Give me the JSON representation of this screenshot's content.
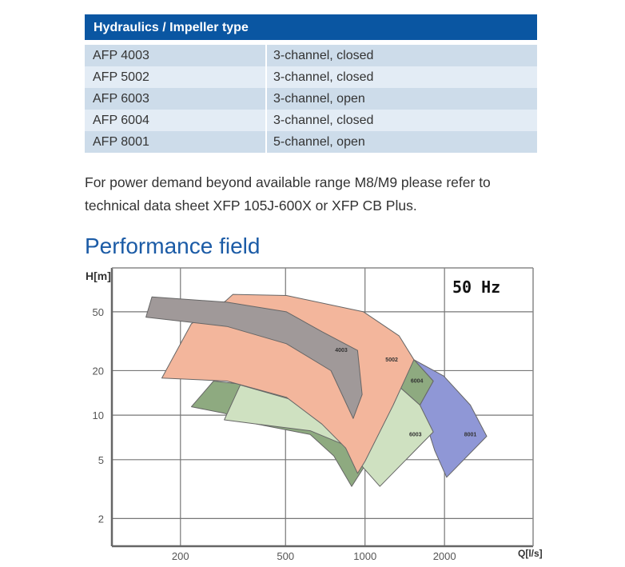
{
  "table": {
    "header": "Hydraulics / Impeller type",
    "rows": [
      {
        "model": "AFP 4003",
        "type": "3-channel, closed"
      },
      {
        "model": "AFP 5002",
        "type": "3-channel, closed"
      },
      {
        "model": "AFP 6003",
        "type": "3-channel, open"
      },
      {
        "model": "AFP 6004",
        "type": "3-channel, closed"
      },
      {
        "model": "AFP 8001",
        "type": "5-channel, open"
      }
    ]
  },
  "note": {
    "line1": "For power demand beyond available range M8/M9 please refer to",
    "line2": "technical data sheet XFP 105J-600X or XFP CB Plus."
  },
  "section_title": "Performance field",
  "chart_data": {
    "type": "area",
    "title": "",
    "annotation": "50 Hz",
    "xlabel": "Q[l/s]",
    "ylabel": "H[m]",
    "xscale": "log",
    "yscale": "log",
    "xlim": [
      110,
      4330
    ],
    "ylim": [
      1.3,
      99
    ],
    "xticks": [
      200,
      500,
      1000,
      2000
    ],
    "yticks": [
      2,
      5,
      10,
      20,
      50
    ],
    "grid": true,
    "series": [
      {
        "name": "8001",
        "color": "#8f97d6",
        "label_at": [
          2506,
          7.4
        ],
        "polygon": [
          [
            1532,
            23.7
          ],
          [
            1986,
            18.4
          ],
          [
            2506,
            11.7
          ],
          [
            2890,
            7.2
          ],
          [
            2037,
            3.8
          ],
          [
            1837,
            5.75
          ],
          [
            1656,
            10.3
          ],
          [
            1614,
            11.7
          ],
          [
            1813,
            17
          ]
        ]
      },
      {
        "name": "6004",
        "color": "#8eaa80",
        "label_at": [
          1572,
          17
        ],
        "polygon": [
          [
            220,
            11.4
          ],
          [
            267,
            17
          ],
          [
            504,
            15
          ],
          [
            1418,
            20
          ],
          [
            1532,
            23.7
          ],
          [
            1813,
            17
          ],
          [
            1614,
            11.7
          ],
          [
            1381,
            15
          ],
          [
            987,
            4.4
          ],
          [
            890,
            3.3
          ],
          [
            762,
            5.3
          ],
          [
            620,
            7.4
          ],
          [
            389,
            8.7
          ],
          [
            293,
            10.3
          ]
        ]
      },
      {
        "name": "6003",
        "color": "#cfe1c1",
        "label_at": [
          1552,
          7.4
        ],
        "polygon": [
          [
            293,
            9.3
          ],
          [
            337,
            16
          ],
          [
            573,
            12.2
          ],
          [
            937,
            6.0
          ],
          [
            1346,
            15.6
          ],
          [
            1614,
            11.7
          ],
          [
            1813,
            7.7
          ],
          [
            1138,
            3.3
          ],
          [
            987,
            4.4
          ],
          [
            845,
            6.25
          ],
          [
            620,
            7.85
          ],
          [
            389,
            8.7
          ]
        ]
      },
      {
        "name": "5002",
        "color": "#f3b69c",
        "label_at": [
          1262,
          23.7
        ],
        "polygon": [
          [
            170,
            17.8
          ],
          [
            220,
            41.5
          ],
          [
            296,
            59
          ],
          [
            316,
            65.6
          ],
          [
            504,
            64.4
          ],
          [
            987,
            50
          ],
          [
            1346,
            34.4
          ],
          [
            1532,
            23.7
          ],
          [
            1279,
            11.7
          ],
          [
            1000,
            4.87
          ],
          [
            937,
            4.04
          ],
          [
            845,
            6.0
          ],
          [
            687,
            8.7
          ],
          [
            504,
            13.2
          ],
          [
            300,
            17
          ]
        ]
      },
      {
        "name": "4003",
        "color": "#a09999",
        "label_at": [
          813,
          27.4
        ],
        "polygon": [
          [
            148,
            46
          ],
          [
            156,
            63
          ],
          [
            300,
            58
          ],
          [
            504,
            50
          ],
          [
            687,
            36.7
          ],
          [
            937,
            27.4
          ],
          [
            975,
            13.8
          ],
          [
            902,
            9.5
          ],
          [
            743,
            20
          ],
          [
            504,
            30.4
          ],
          [
            300,
            39.8
          ]
        ]
      }
    ]
  }
}
